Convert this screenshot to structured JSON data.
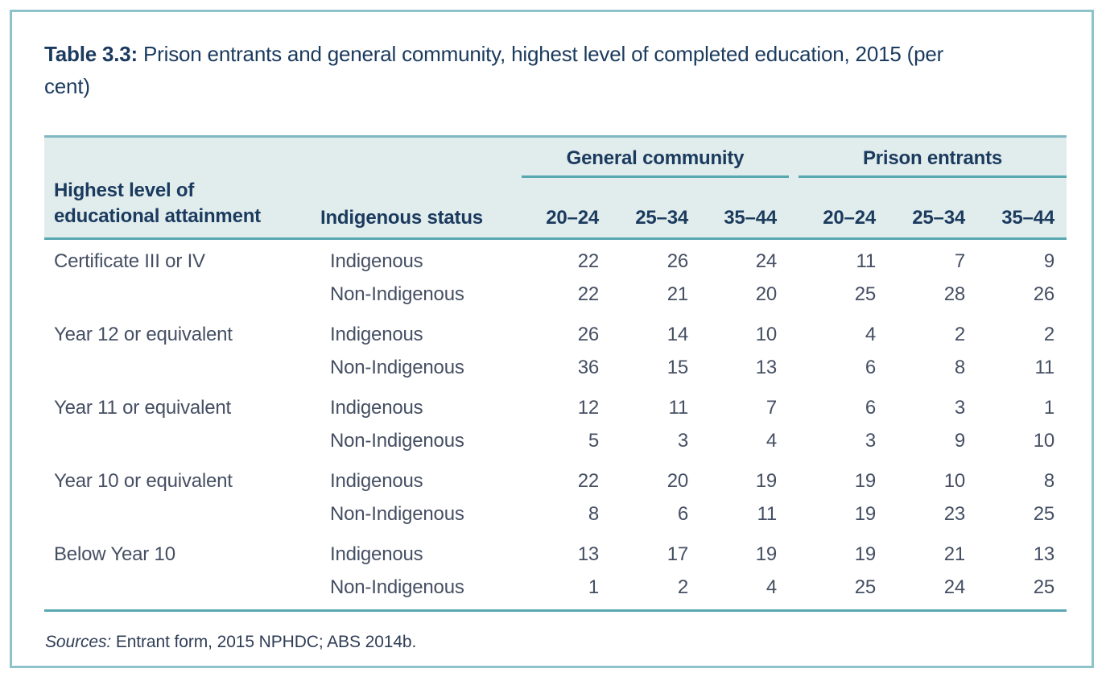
{
  "title": {
    "label": "Table 3.3:",
    "text": " Prison entrants and general community, highest level of completed education, 2015 (per cent)"
  },
  "table": {
    "column_groups": {
      "general": "General community",
      "prison": "Prison entrants"
    },
    "columns": {
      "attainment": "Highest level of educational attainment",
      "status": "Indigenous status",
      "ages": [
        "20–24",
        "25–34",
        "35–44"
      ]
    },
    "body": [
      {
        "attainment": "Certificate III or IV",
        "rows": [
          {
            "status": "Indigenous",
            "general": [
              "22",
              "26",
              "24"
            ],
            "prison": [
              "11",
              "7",
              "9"
            ]
          },
          {
            "status": "Non-Indigenous",
            "general": [
              "22",
              "21",
              "20"
            ],
            "prison": [
              "25",
              "28",
              "26"
            ]
          }
        ]
      },
      {
        "attainment": "Year 12 or equivalent",
        "rows": [
          {
            "status": "Indigenous",
            "general": [
              "26",
              "14",
              "10"
            ],
            "prison": [
              "4",
              "2",
              "2"
            ]
          },
          {
            "status": "Non-Indigenous",
            "general": [
              "36",
              "15",
              "13"
            ],
            "prison": [
              "6",
              "8",
              "11"
            ]
          }
        ]
      },
      {
        "attainment": "Year 11 or equivalent",
        "rows": [
          {
            "status": "Indigenous",
            "general": [
              "12",
              "11",
              "7"
            ],
            "prison": [
              "6",
              "3",
              "1"
            ]
          },
          {
            "status": "Non-Indigenous",
            "general": [
              "5",
              "3",
              "4"
            ],
            "prison": [
              "3",
              "9",
              "10"
            ]
          }
        ]
      },
      {
        "attainment": "Year 10 or equivalent",
        "rows": [
          {
            "status": "Indigenous",
            "general": [
              "22",
              "20",
              "19"
            ],
            "prison": [
              "19",
              "10",
              "8"
            ]
          },
          {
            "status": "Non-Indigenous",
            "general": [
              "8",
              "6",
              "11"
            ],
            "prison": [
              "19",
              "23",
              "25"
            ]
          }
        ]
      },
      {
        "attainment": "Below Year 10",
        "rows": [
          {
            "status": "Indigenous",
            "general": [
              "13",
              "17",
              "19"
            ],
            "prison": [
              "19",
              "21",
              "13"
            ]
          },
          {
            "status": "Non-Indigenous",
            "general": [
              "1",
              "2",
              "4"
            ],
            "prison": [
              "25",
              "24",
              "25"
            ]
          }
        ]
      }
    ]
  },
  "source": {
    "label": "Sources:",
    "text": " Entrant form, 2015 NPHDC; ABS 2014b."
  },
  "colors": {
    "accent_teal": "#58a7b1",
    "header_band_teal": "#e1ecec",
    "frame_border": "#8fc3ca",
    "heading_navy": "#1a3a5e",
    "body_text": "#454f63"
  }
}
